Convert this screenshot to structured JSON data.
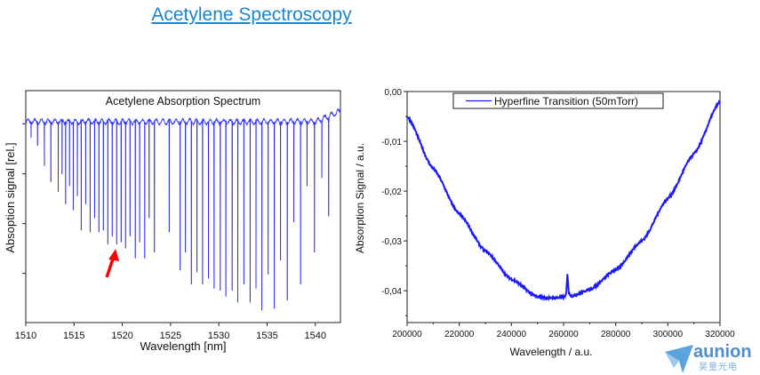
{
  "page": {
    "title": "Acetylene Spectroscopy"
  },
  "logo": {
    "word": "aunion",
    "cn": "昊量光电",
    "color": "#4a8fcf"
  },
  "chart_data": [
    {
      "type": "line",
      "title": "Acetylene Absorption Spectrum",
      "xlabel": "Wavelength [nm]",
      "ylabel": "Absoption signal [rel.]",
      "xlim": [
        1510,
        1542.6
      ],
      "xticks": [
        1510,
        1515,
        1520,
        1525,
        1530,
        1535,
        1540
      ],
      "yticks_labeled": false,
      "color": "#1a1aff",
      "baseline": 1.0,
      "absorption_lines": [
        [
          1510.55,
          0.08
        ],
        [
          1511.22,
          0.12
        ],
        [
          1511.93,
          0.22
        ],
        [
          1512.6,
          0.3
        ],
        [
          1513.36,
          0.35
        ],
        [
          1513.76,
          0.26
        ],
        [
          1514.13,
          0.41
        ],
        [
          1514.53,
          0.32
        ],
        [
          1514.92,
          0.44
        ],
        [
          1515.35,
          0.37
        ],
        [
          1515.75,
          0.54
        ],
        [
          1516.21,
          0.41
        ],
        [
          1516.67,
          0.55
        ],
        [
          1517.13,
          0.48
        ],
        [
          1517.58,
          0.55
        ],
        [
          1518.04,
          0.54
        ],
        [
          1518.5,
          0.61
        ],
        [
          1518.96,
          0.57
        ],
        [
          1519.42,
          0.61
        ],
        [
          1519.88,
          0.6
        ],
        [
          1520.34,
          0.63
        ],
        [
          1520.8,
          0.57
        ],
        [
          1521.35,
          0.68
        ],
        [
          1521.8,
          0.6
        ],
        [
          1522.32,
          0.68
        ],
        [
          1522.78,
          0.48
        ],
        [
          1523.33,
          0.65
        ],
        [
          1524.86,
          0.55
        ],
        [
          1525.99,
          0.74
        ],
        [
          1526.54,
          0.65
        ],
        [
          1527.16,
          0.81
        ],
        [
          1527.74,
          0.75
        ],
        [
          1528.32,
          0.81
        ],
        [
          1528.93,
          0.78
        ],
        [
          1529.51,
          0.83
        ],
        [
          1530.15,
          0.84
        ],
        [
          1530.73,
          0.87
        ],
        [
          1531.38,
          0.84
        ],
        [
          1531.96,
          0.9
        ],
        [
          1532.6,
          0.81
        ],
        [
          1533.24,
          0.9
        ],
        [
          1533.85,
          0.83
        ],
        [
          1534.46,
          0.94
        ],
        [
          1535.11,
          0.76
        ],
        [
          1535.75,
          0.93
        ],
        [
          1536.39,
          0.69
        ],
        [
          1537.09,
          0.89
        ],
        [
          1537.77,
          0.5
        ],
        [
          1538.47,
          0.81
        ],
        [
          1539.14,
          0.32
        ],
        [
          1539.91,
          0.65
        ],
        [
          1540.67,
          0.28
        ],
        [
          1541.38,
          0.47
        ]
      ],
      "annotation": {
        "type": "arrow",
        "color": "#ff0000",
        "points_to_nm": 1519.4
      }
    },
    {
      "type": "line",
      "xlabel": "Wavelength / a.u.",
      "ylabel": "Absorption Signal / a.u.",
      "xlim": [
        200000,
        320000
      ],
      "ylim": [
        -0.0464,
        0.0
      ],
      "xticks": [
        200000,
        220000,
        240000,
        260000,
        280000,
        300000,
        320000
      ],
      "yticks": [
        0.0,
        -0.01,
        -0.02,
        -0.03,
        -0.04
      ],
      "ytick_labels": [
        "0,00",
        "-0,01",
        "-0,02",
        "-0,03",
        "-0,04"
      ],
      "legend": {
        "position": "top-center",
        "entries": [
          "Hyperfine Transition (50mTorr)"
        ]
      },
      "series": [
        {
          "name": "Hyperfine Transition (50mTorr)",
          "color": "#1a1aff",
          "points": [
            [
              200000,
              -0.005
            ],
            [
              210000,
              -0.0155
            ],
            [
              220000,
              -0.0246
            ],
            [
              230000,
              -0.032
            ],
            [
              240000,
              -0.0377
            ],
            [
              250000,
              -0.0412
            ],
            [
              255000,
              -0.0415
            ],
            [
              260000,
              -0.0413
            ],
            [
              261000,
              -0.0408
            ],
            [
              261500,
              -0.0365
            ],
            [
              262000,
              -0.0405
            ],
            [
              263000,
              -0.0411
            ],
            [
              270000,
              -0.0398
            ],
            [
              280000,
              -0.0358
            ],
            [
              290000,
              -0.03
            ],
            [
              300000,
              -0.0215
            ],
            [
              310000,
              -0.0125
            ],
            [
              320000,
              -0.002
            ]
          ]
        }
      ]
    }
  ]
}
